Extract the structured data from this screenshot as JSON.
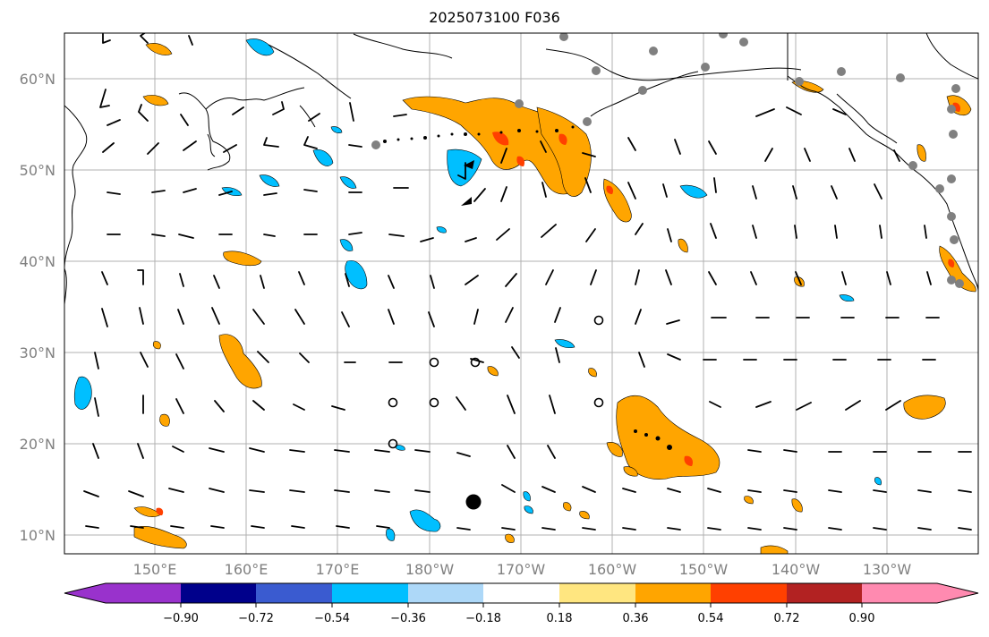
{
  "title": "2025073100 F036",
  "lat_labels": [
    "60°N",
    "50°N",
    "40°N",
    "30°N",
    "20°N",
    "10°N"
  ],
  "lon_labels": [
    "150°E",
    "160°E",
    "170°E",
    "180°W",
    "170°W",
    "160°W",
    "150°W",
    "140°W",
    "130°W"
  ],
  "colorbar": {
    "colors": [
      "#9932cc",
      "#00008b",
      "#3a5bd0",
      "#00bfff",
      "#add8f8",
      "#ffffff",
      "#ffe680",
      "#ffa500",
      "#ff4000",
      "#b22222",
      "#ff8ab0"
    ],
    "tick_labels": [
      "−0.90",
      "−0.72",
      "−0.54",
      "−0.36",
      "−0.18",
      "0.18",
      "0.36",
      "0.54",
      "0.72",
      "0.90"
    ]
  },
  "colors": {
    "grid": "#b0b0b0",
    "positive_fill": "#ffa500",
    "positive_strong": "#ff4000",
    "negative_fill": "#00bfff",
    "coast": "#000000",
    "station_dot": "#808080"
  }
}
